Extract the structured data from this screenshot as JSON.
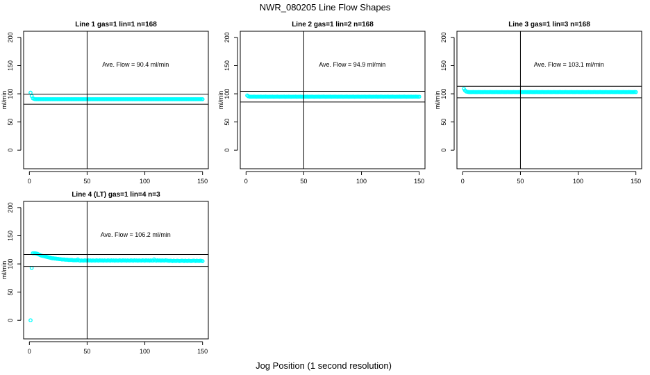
{
  "title": "NWR_080205  Line Flow Shapes",
  "xlabel": "Jog Position (1 second resolution)",
  "colors": {
    "points": "#00ffff",
    "axes": "#000000"
  },
  "chart_data": [
    {
      "type": "scatter",
      "title": "Line 1 gas=1 lin=1 n=168",
      "ylabel": "ml/min",
      "xlim": [
        -5,
        155
      ],
      "ylim": [
        -33,
        211
      ],
      "xticks": [
        0,
        50,
        100,
        150
      ],
      "yticks": [
        0,
        50,
        100,
        150,
        200
      ],
      "vline": 50,
      "hlines": [
        99.4,
        81.4
      ],
      "annotation": "Ave. Flow =  90.4  ml/min",
      "x_start": 1,
      "values": [
        102,
        96,
        92,
        91,
        90.5,
        90.4,
        90.4,
        90.3,
        90.3,
        90.3,
        90.4,
        90.3,
        90.4,
        90.4,
        90.3,
        90.4,
        90.4,
        90.3,
        90.4,
        90.4,
        90.4,
        90.3,
        90.4,
        90.4,
        90.3,
        90.4,
        90.4,
        90.3,
        90.4,
        90.4,
        90.4,
        90.3,
        90.4,
        90.4,
        90.3,
        90.4,
        90.4,
        90.3,
        90.4,
        90.4,
        90.4,
        90.3,
        90.4,
        90.4,
        90.3,
        90.4,
        90.4,
        90.3,
        90.4,
        90.4,
        90.4,
        90.3,
        90.4,
        90.4,
        90.3,
        90.4,
        90.4,
        90.3,
        90.4,
        90.4,
        90.4,
        90.3,
        90.4,
        90.4,
        90.3,
        90.4,
        90.4,
        90.3,
        90.4,
        90.4,
        90.4,
        90.3,
        90.4,
        90.4,
        90.3,
        90.4,
        90.4,
        90.3,
        90.4,
        90.4,
        90.4,
        90.3,
        90.4,
        90.4,
        90.3,
        90.4,
        90.4,
        90.3,
        90.4,
        90.4,
        90.4,
        90.3,
        90.4,
        90.4,
        90.3,
        90.4,
        90.4,
        90.3,
        90.4,
        90.4,
        90.4,
        90.3,
        90.4,
        90.4,
        90.3,
        90.4,
        90.4,
        90.3,
        90.4,
        90.4,
        90.4,
        90.3,
        90.4,
        90.4,
        90.3,
        90.4,
        90.4,
        90.3,
        90.4,
        90.4,
        90.4,
        90.3,
        90.4,
        90.4,
        90.3,
        90.4,
        90.4,
        90.3,
        90.4,
        90.4,
        90.4,
        90.3,
        90.4,
        90.4,
        90.3,
        90.4,
        90.4,
        90.3,
        90.4,
        90.4,
        90.4,
        90.3,
        90.4,
        90.4,
        90.3,
        90.4,
        90.4,
        90.3,
        90.4,
        90.4
      ]
    },
    {
      "type": "scatter",
      "title": "Line 2 gas=1 lin=2 n=168",
      "ylabel": "ml/min",
      "xlim": [
        -5,
        155
      ],
      "ylim": [
        -33,
        211
      ],
      "xticks": [
        0,
        50,
        100,
        150
      ],
      "yticks": [
        0,
        50,
        100,
        150,
        200
      ],
      "vline": 50,
      "hlines": [
        104.4,
        85.4
      ],
      "annotation": "Ave. Flow =  94.9  ml/min",
      "x_start": 1,
      "values": [
        97,
        95.5,
        95,
        94.9,
        94.9,
        94.9,
        95,
        94.9,
        94.8,
        94.9,
        94.9,
        94.9,
        95,
        94.8,
        94.9,
        94.9,
        95,
        94.9,
        94.8,
        94.9,
        94.9,
        94.9,
        95,
        94.8,
        94.9,
        94.9,
        95,
        94.9,
        94.8,
        94.9,
        94.9,
        94.9,
        95,
        94.8,
        94.9,
        94.9,
        95,
        94.9,
        94.8,
        94.9,
        94.9,
        94.9,
        95,
        94.8,
        94.9,
        94.9,
        95,
        94.9,
        94.8,
        94.9,
        94.9,
        94.9,
        95,
        94.8,
        94.9,
        94.9,
        95,
        94.9,
        94.8,
        94.9,
        94.9,
        94.9,
        95,
        94.8,
        94.9,
        94.9,
        95,
        94.9,
        94.8,
        94.9,
        94.9,
        94.9,
        95,
        94.8,
        94.9,
        94.9,
        95,
        94.9,
        94.8,
        94.9,
        94.9,
        94.9,
        95,
        94.8,
        94.9,
        94.9,
        95,
        94.9,
        94.8,
        94.9,
        94.9,
        94.9,
        95,
        94.8,
        94.9,
        94.9,
        95,
        94.9,
        94.8,
        94.9,
        94.9,
        94.9,
        95,
        94.8,
        94.9,
        94.9,
        95,
        94.9,
        94.8,
        94.9,
        94.9,
        94.9,
        95,
        94.8,
        94.9,
        94.9,
        95,
        94.9,
        94.8,
        94.9,
        94.9,
        94.9,
        95,
        94.8,
        94.9,
        94.9,
        95,
        94.9,
        94.8,
        94.9,
        94.9,
        94.9,
        95,
        94.8,
        94.9,
        94.9,
        95,
        94.9,
        94.8,
        94.9,
        94.9,
        94.9,
        95,
        94.8,
        94.9,
        94.9,
        95,
        94.9,
        94.8,
        94.9
      ]
    },
    {
      "type": "scatter",
      "title": "Line 3 gas=1 lin=3 n=168",
      "ylabel": "ml/min",
      "xlim": [
        -5,
        155
      ],
      "ylim": [
        -33,
        211
      ],
      "xticks": [
        0,
        50,
        100,
        150
      ],
      "yticks": [
        0,
        50,
        100,
        150,
        200
      ],
      "vline": 50,
      "hlines": [
        113.4,
        92.8
      ],
      "annotation": "Ave. Flow =  103.1  ml/min",
      "x_start": 1,
      "values": [
        109,
        106,
        104,
        103.5,
        103.2,
        103.1,
        103,
        103.1,
        103.2,
        103.1,
        103.1,
        103,
        103.1,
        103.2,
        103.1,
        103,
        103.1,
        103.1,
        103.2,
        103.1,
        103.1,
        103,
        103.1,
        103.2,
        103.1,
        103,
        103.1,
        103.1,
        103.2,
        103.1,
        103.1,
        103,
        103.1,
        103.2,
        103.1,
        103,
        103.1,
        103.1,
        103.2,
        103.1,
        103.1,
        103,
        103.1,
        103.2,
        103.1,
        103,
        103.1,
        103.1,
        103.2,
        103.1,
        103.1,
        103,
        103.1,
        103.2,
        103.1,
        103,
        103.1,
        103.1,
        103.2,
        103.1,
        103.1,
        103,
        103.1,
        103.2,
        103.1,
        103,
        103.1,
        103.1,
        103.2,
        103.1,
        103.1,
        103,
        103.1,
        103.2,
        103.1,
        103,
        103.1,
        103.1,
        103.2,
        103.1,
        103.1,
        103,
        103.1,
        103.2,
        103.1,
        103,
        103.1,
        103.1,
        103.2,
        103.1,
        103.1,
        103,
        103.1,
        103.2,
        103.1,
        103,
        103.1,
        103.1,
        103.2,
        103.1,
        103.1,
        103,
        103.1,
        103.2,
        103.1,
        103,
        103.1,
        103.1,
        103.2,
        103.1,
        103.1,
        103,
        103.1,
        103.2,
        103.1,
        103,
        103.1,
        103.1,
        103.2,
        103.1,
        103.1,
        103,
        103.1,
        103.2,
        103.1,
        103,
        103.1,
        103.1,
        103.2,
        103.1,
        103.1,
        103,
        103.1,
        103.2,
        103.1,
        103,
        103.1,
        103.1,
        103.2,
        103.1,
        103.1,
        103,
        103.1,
        103.2,
        103.1,
        103,
        103.1,
        103.1,
        103.2,
        103.1
      ]
    },
    {
      "type": "scatter",
      "title": "Line 4 (LT) gas=1 lin=4 n=3",
      "ylabel": "ml/min",
      "xlim": [
        -5,
        155
      ],
      "ylim": [
        -33,
        211
      ],
      "xticks": [
        0,
        50,
        100,
        150
      ],
      "yticks": [
        0,
        50,
        100,
        150,
        200
      ],
      "vline": 50,
      "hlines": [
        116.8,
        95.6
      ],
      "annotation": "Ave. Flow =  106.2  ml/min",
      "x_start": 1,
      "values": [
        0,
        93,
        119,
        119,
        119,
        118.5,
        118,
        117,
        116,
        115,
        114.5,
        114,
        113.5,
        113,
        112.5,
        112,
        111.5,
        111,
        110.5,
        110,
        110,
        109.5,
        109.5,
        109,
        109,
        108.5,
        108.5,
        108,
        108,
        108,
        107.5,
        107.5,
        107.5,
        107,
        107,
        107,
        107,
        106.5,
        106.5,
        106.5,
        106.5,
        108,
        106.2,
        105.8,
        106.3,
        106,
        105.9,
        106.4,
        106.1,
        105.8,
        106.5,
        106,
        106.2,
        105.8,
        106.3,
        106,
        105.9,
        106.4,
        106.1,
        105.8,
        106.5,
        106,
        106.2,
        105.8,
        106.3,
        106,
        105.9,
        106.4,
        106.1,
        105.8,
        106.5,
        106,
        106.2,
        105.8,
        106.3,
        106,
        105.9,
        106.4,
        106.1,
        105.8,
        106.5,
        106,
        106.2,
        105.8,
        106.3,
        106,
        105.9,
        106.4,
        106.1,
        105.8,
        106.5,
        106,
        106.2,
        105.8,
        106.3,
        106,
        105.9,
        106.4,
        106.1,
        105.8,
        106.5,
        106,
        106.2,
        105.8,
        106.3,
        106,
        105.9,
        108,
        106.1,
        105.8,
        106.5,
        106,
        106.2,
        105.8,
        106.3,
        106,
        105.9,
        106.4,
        106.1,
        105.8,
        105.5,
        105.8,
        105.6,
        105.2,
        105.7,
        105.4,
        105.3,
        105.8,
        105.5,
        105.2,
        105.5,
        105.8,
        105.6,
        105.2,
        105.7,
        105.4,
        105.3,
        105.8,
        105.5,
        105.2,
        105.5,
        105.8,
        105.6,
        105.2,
        105.7,
        105.4,
        105.3,
        105.8,
        105.5,
        105
      ]
    }
  ]
}
